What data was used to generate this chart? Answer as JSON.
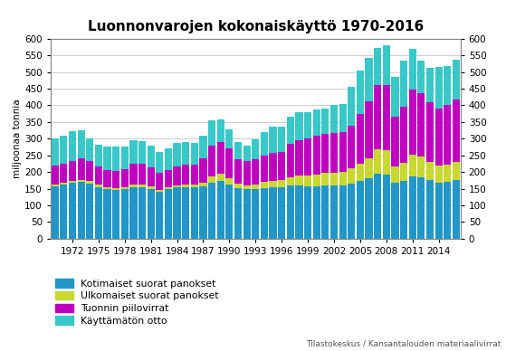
{
  "title": "Luonnonvarojen kokonaiskäyttö 1970-2016",
  "ylabel_left": "miljoonaa tonnia",
  "years": [
    1970,
    1971,
    1972,
    1973,
    1974,
    1975,
    1976,
    1977,
    1978,
    1979,
    1980,
    1981,
    1982,
    1983,
    1984,
    1985,
    1986,
    1987,
    1988,
    1989,
    1990,
    1991,
    1992,
    1993,
    1994,
    1995,
    1996,
    1997,
    1998,
    1999,
    2000,
    2001,
    2002,
    2003,
    2004,
    2005,
    2006,
    2007,
    2008,
    2009,
    2010,
    2011,
    2012,
    2013,
    2014,
    2015,
    2016
  ],
  "series": {
    "Kotimaiset suorat panokset": [
      158,
      162,
      168,
      170,
      165,
      155,
      150,
      147,
      148,
      155,
      155,
      150,
      140,
      148,
      153,
      153,
      153,
      158,
      168,
      173,
      162,
      152,
      148,
      148,
      152,
      155,
      155,
      160,
      160,
      158,
      158,
      160,
      160,
      160,
      165,
      172,
      180,
      195,
      193,
      168,
      173,
      188,
      185,
      175,
      168,
      170,
      175
    ],
    "Ulkomaiset suorat panokset": [
      5,
      5,
      6,
      7,
      7,
      6,
      5,
      5,
      5,
      7,
      8,
      7,
      5,
      6,
      7,
      8,
      8,
      10,
      18,
      22,
      20,
      12,
      12,
      15,
      18,
      18,
      20,
      25,
      30,
      32,
      35,
      38,
      38,
      40,
      45,
      52,
      62,
      72,
      72,
      48,
      55,
      65,
      62,
      55,
      52,
      52,
      55
    ],
    "Tuonnin piilovirrat": [
      55,
      58,
      60,
      65,
      60,
      55,
      52,
      52,
      55,
      62,
      62,
      58,
      52,
      52,
      56,
      60,
      60,
      72,
      92,
      95,
      88,
      75,
      72,
      75,
      80,
      85,
      85,
      100,
      105,
      110,
      115,
      115,
      120,
      120,
      130,
      150,
      170,
      195,
      195,
      150,
      168,
      195,
      188,
      178,
      170,
      178,
      188
    ],
    "Käyttämätön otto": [
      82,
      85,
      88,
      83,
      68,
      65,
      68,
      72,
      68,
      70,
      68,
      65,
      62,
      65,
      72,
      68,
      65,
      68,
      78,
      68,
      58,
      52,
      48,
      60,
      70,
      78,
      75,
      80,
      85,
      80,
      80,
      78,
      82,
      85,
      115,
      130,
      130,
      110,
      120,
      120,
      138,
      120,
      98,
      105,
      125,
      118,
      118
    ]
  },
  "colors": {
    "Kotimaiset suorat panokset": "#2196C8",
    "Ulkomaiset suorat panokset": "#C8D830",
    "Tuonnin piilovirrat": "#C000C0",
    "Käyttämätön otto": "#38C8C8"
  },
  "ylim": [
    0,
    600
  ],
  "yticks": [
    0,
    50,
    100,
    150,
    200,
    250,
    300,
    350,
    400,
    450,
    500,
    550,
    600
  ],
  "xticks": [
    1972,
    1975,
    1978,
    1981,
    1984,
    1987,
    1990,
    1993,
    1996,
    1999,
    2002,
    2005,
    2008,
    2011,
    2014
  ],
  "source_text": "Tilastokeskus / Kansantalouden materiaalivirrat",
  "background_color": "#FFFFFF",
  "grid_color": "#C8C8C8"
}
